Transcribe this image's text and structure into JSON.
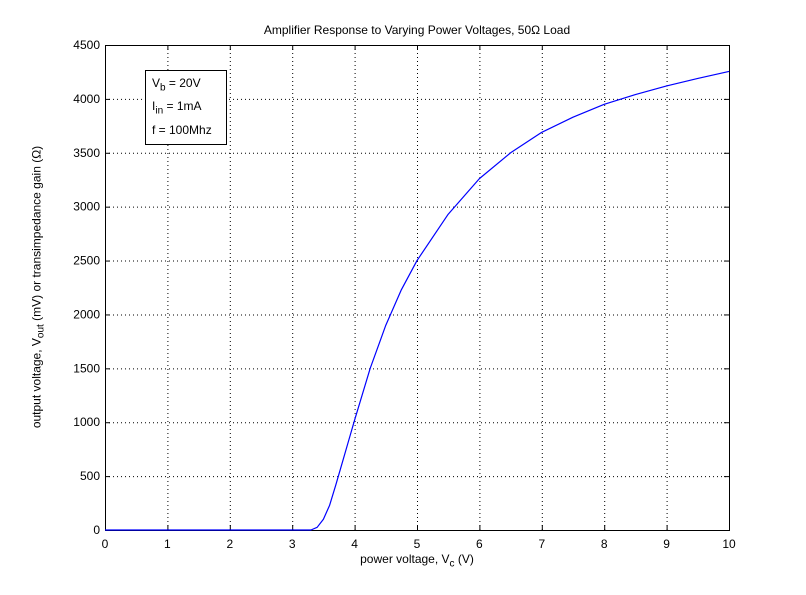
{
  "chart_data": {
    "type": "line",
    "title": "Amplifier Response to Varying Power Voltages, 50Ω Load",
    "xlabel": "power voltage, V_c (V)",
    "ylabel": "output voltage, V_out (mV) or transimpedance gain (Ω)",
    "xlim": [
      0,
      10
    ],
    "ylim": [
      0,
      4500
    ],
    "xticks": [
      0,
      1,
      2,
      3,
      4,
      5,
      6,
      7,
      8,
      9,
      10
    ],
    "yticks": [
      0,
      500,
      1000,
      1500,
      2000,
      2500,
      3000,
      3500,
      4000,
      4500
    ],
    "grid": true,
    "series": [
      {
        "name": "Vout",
        "color": "#0000ff",
        "x": [
          0,
          1,
          2,
          3,
          3.3,
          3.4,
          3.5,
          3.6,
          3.7,
          3.8,
          3.9,
          4.0,
          4.25,
          4.5,
          4.75,
          5.0,
          5.5,
          6.0,
          6.5,
          7.0,
          7.5,
          8.0,
          8.5,
          9.0,
          9.5,
          10.0
        ],
        "y": [
          0,
          0,
          0,
          0,
          0,
          25,
          100,
          230,
          420,
          620,
          820,
          1020,
          1500,
          1900,
          2230,
          2500,
          2930,
          3260,
          3500,
          3690,
          3830,
          3950,
          4040,
          4120,
          4190,
          4255
        ]
      }
    ],
    "legend": {
      "position": "upper-left",
      "entries": [
        "V_b = 20V",
        "I_in = 1mA",
        "f = 100Mhz"
      ]
    }
  },
  "text": {
    "title": "Amplifier Response to Varying Power Voltages, 50Ω Load",
    "xlabel_main": "power voltage, V",
    "xlabel_sub": "c",
    "xlabel_tail": " (V)",
    "ylabel_a": "output voltage, V",
    "ylabel_sub": "out",
    "ylabel_b": " (mV) or transimpedance gain (Ω)",
    "legend_l1a": "V",
    "legend_l1s": "b",
    "legend_l1b": " = 20V",
    "legend_l2a": "I",
    "legend_l2s": "in",
    "legend_l2b": " = 1mA",
    "legend_l3": "f = 100Mhz"
  }
}
